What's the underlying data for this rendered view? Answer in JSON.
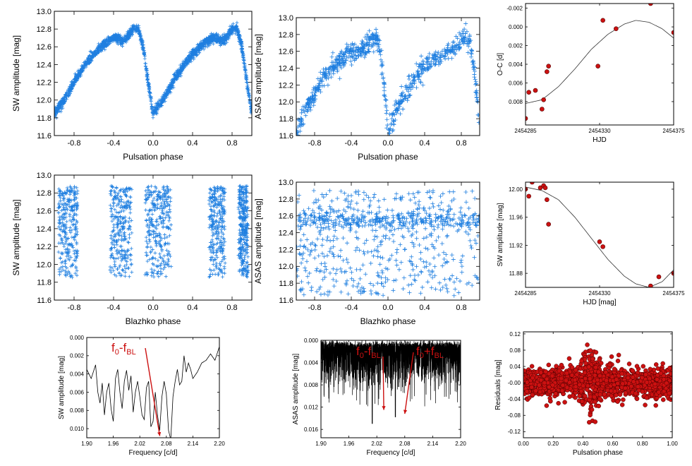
{
  "colors": {
    "blue": "#1f7fe0",
    "red": "#cc1111",
    "black": "#000000",
    "fit": "#333333"
  },
  "chart_data": [
    {
      "id": "p1",
      "type": "scatter",
      "marker": "plus",
      "color": "#1f7fe0",
      "density": "dense",
      "xlabel": "Pulsation phase",
      "ylabel": "SW amplitude [mag]",
      "xlim": [
        -1.0,
        1.0
      ],
      "ylim": [
        13.0,
        11.6
      ],
      "xticks": [
        "-0.8",
        "-0.4",
        "0.0",
        "0.4",
        "0.8"
      ],
      "xtickvals": [
        -0.8,
        -0.4,
        0.0,
        0.4,
        0.8
      ],
      "yticks": [
        "11.6",
        "11.8",
        "12.0",
        "12.2",
        "12.4",
        "12.6",
        "12.8",
        "13.0"
      ],
      "ytickvals": [
        11.6,
        11.8,
        12.0,
        12.2,
        12.4,
        12.6,
        12.8,
        13.0
      ],
      "curve": {
        "x": [
          0.0,
          0.05,
          0.1,
          0.2,
          0.3,
          0.4,
          0.5,
          0.6,
          0.65,
          0.7,
          0.75,
          0.8,
          0.85,
          0.9,
          0.95,
          1.0
        ],
        "y": [
          11.85,
          11.93,
          12.0,
          12.2,
          12.38,
          12.52,
          12.62,
          12.7,
          12.69,
          12.66,
          12.72,
          12.8,
          12.8,
          12.6,
          12.2,
          11.85
        ]
      },
      "spread": 0.05,
      "marker_size": 2.5,
      "count": 1800
    },
    {
      "id": "p2",
      "type": "scatter",
      "marker": "plus",
      "color": "#1f7fe0",
      "density": "sparse",
      "xlabel": "Pulsation phase",
      "ylabel": "ASAS amplitude [mag]",
      "xlim": [
        -1.0,
        1.0
      ],
      "ylim": [
        13.0,
        11.6
      ],
      "xticks": [
        "-0.8",
        "-0.4",
        "0.0",
        "0.4",
        "0.8"
      ],
      "xtickvals": [
        -0.8,
        -0.4,
        0.0,
        0.4,
        0.8
      ],
      "yticks": [
        "11.6",
        "11.8",
        "12.0",
        "12.2",
        "12.4",
        "12.6",
        "12.8",
        "13.0"
      ],
      "ytickvals": [
        11.6,
        11.8,
        12.0,
        12.2,
        12.4,
        12.6,
        12.8,
        13.0
      ],
      "curve": {
        "x": [
          0.0,
          0.05,
          0.1,
          0.2,
          0.3,
          0.4,
          0.5,
          0.6,
          0.65,
          0.7,
          0.75,
          0.8,
          0.85,
          0.9,
          0.95,
          1.0
        ],
        "y": [
          11.65,
          11.78,
          11.9,
          12.1,
          12.3,
          12.42,
          12.5,
          12.58,
          12.6,
          12.62,
          12.66,
          12.72,
          12.78,
          12.7,
          12.3,
          11.65
        ]
      },
      "spread": 0.12,
      "marker_size": 3,
      "count": 750
    },
    {
      "id": "p3",
      "type": "line",
      "color": "#000000",
      "xlabel": "HJD",
      "ylabel": "O-C [d]",
      "xlim": [
        2454285,
        2454375
      ],
      "ylim": [
        -0.0025,
        0.0105
      ],
      "xticks": [
        "2454285",
        "2454330",
        "2454375"
      ],
      "xtickvals": [
        2454285,
        2454330,
        2454375
      ],
      "yticks": [
        "-0.002",
        "0.000",
        "0.002",
        "0.004",
        "0.006",
        "0.008"
      ],
      "ytickvals": [
        -0.002,
        0.0,
        0.002,
        0.004,
        0.006,
        0.008
      ],
      "points": {
        "x": [
          2454285,
          2454287,
          2454291,
          2454295,
          2454296,
          2454298,
          2454299,
          2454329,
          2454332,
          2454340,
          2454361,
          2454375
        ],
        "y": [
          0.0098,
          0.007,
          0.0068,
          0.0088,
          0.0078,
          0.0048,
          0.0042,
          0.0042,
          -0.0007,
          0.0002,
          -0.0025,
          0.0006
        ]
      },
      "fit": {
        "x": [
          2454285,
          2454295,
          2454305,
          2454315,
          2454325,
          2454335,
          2454345,
          2454352,
          2454360,
          2454368,
          2454375
        ],
        "y": [
          0.0082,
          0.0078,
          0.0064,
          0.0045,
          0.0024,
          0.0008,
          -0.0003,
          -0.0007,
          -0.0005,
          0.0002,
          0.0012
        ]
      }
    },
    {
      "id": "p4",
      "type": "scatter",
      "marker": "plus",
      "color": "#1f7fe0",
      "density": "bands",
      "xlabel": "Blazhko phase",
      "ylabel": "SW amplitude [mag]",
      "xlim": [
        -1.0,
        1.0
      ],
      "ylim": [
        13.0,
        11.6
      ],
      "xticks": [
        "-0.8",
        "-0.4",
        "0.0",
        "0.4",
        "0.8"
      ],
      "xtickvals": [
        -0.8,
        -0.4,
        0.0,
        0.4,
        0.8
      ],
      "yticks": [
        "11.6",
        "11.8",
        "12.0",
        "12.2",
        "12.4",
        "12.6",
        "12.8",
        "13.0"
      ],
      "ytickvals": [
        11.6,
        11.8,
        12.0,
        12.2,
        12.4,
        12.6,
        12.8,
        13.0
      ],
      "bands": [
        [
          -0.96,
          -0.76
        ],
        [
          -0.43,
          -0.22
        ],
        [
          -0.08,
          0.18
        ],
        [
          0.57,
          0.73
        ],
        [
          0.87,
          0.96
        ]
      ],
      "yrange": [
        11.85,
        12.88
      ],
      "marker_size": 2.5,
      "count": 1400
    },
    {
      "id": "p5",
      "type": "scatter",
      "marker": "plus",
      "color": "#1f7fe0",
      "density": "uniform",
      "xlabel": "Blazhko phase",
      "ylabel": "ASAS amplitude [mag]",
      "xlim": [
        -1.0,
        1.0
      ],
      "ylim": [
        13.0,
        11.6
      ],
      "xticks": [
        "-0.8",
        "-0.4",
        "0.0",
        "0.4",
        "0.8"
      ],
      "xtickvals": [
        -0.8,
        -0.4,
        0.0,
        0.4,
        0.8
      ],
      "yticks": [
        "11.6",
        "11.8",
        "12.0",
        "12.2",
        "12.4",
        "12.6",
        "12.8",
        "13.0"
      ],
      "ytickvals": [
        11.6,
        11.8,
        12.0,
        12.2,
        12.4,
        12.6,
        12.8,
        13.0
      ],
      "yrange": [
        11.65,
        12.9
      ],
      "yconc": 12.55,
      "marker_size": 3,
      "count": 800
    },
    {
      "id": "p6",
      "type": "line",
      "color": "#000000",
      "xlabel": "HJD [mag]",
      "ylabel": "SW amplitude [mag]",
      "xlim": [
        2454285,
        2454375
      ],
      "ylim": [
        12.01,
        11.86
      ],
      "xticks": [
        "2454285",
        "2454330",
        "2454375"
      ],
      "xtickvals": [
        2454285,
        2454330,
        2454375
      ],
      "yticks": [
        "11.88",
        "11.92",
        "11.96",
        "12.00"
      ],
      "ytickvals": [
        11.88,
        11.92,
        11.96,
        12.0
      ],
      "points": {
        "x": [
          2454285,
          2454287,
          2454289,
          2454294,
          2454296,
          2454297,
          2454298,
          2454299,
          2454330,
          2454332,
          2454340,
          2454361,
          2454366,
          2454375
        ],
        "y": [
          12.0,
          11.99,
          12.01,
          12.002,
          12.005,
          12.002,
          11.985,
          11.95,
          11.925,
          11.918,
          11.857,
          11.862,
          11.875,
          11.88
        ]
      },
      "fit": {
        "x": [
          2454285,
          2454295,
          2454305,
          2454315,
          2454325,
          2454335,
          2454345,
          2454352,
          2454360,
          2454368,
          2454375
        ],
        "y": [
          12.003,
          11.998,
          11.985,
          11.96,
          11.93,
          11.9,
          11.876,
          11.865,
          11.86,
          11.868,
          11.885
        ]
      }
    },
    {
      "id": "p7",
      "type": "line",
      "color": "#000000",
      "xlabel": "Frequency [c/d]",
      "ylabel": "SW amplitude [mag]",
      "xlim": [
        1.9,
        2.2
      ],
      "ylim": [
        0,
        0.011
      ],
      "xticks": [
        "1.90",
        "1.96",
        "2.02",
        "2.08",
        "2.14",
        "2.20"
      ],
      "xtickvals": [
        1.9,
        1.96,
        2.02,
        2.08,
        2.14,
        2.2
      ],
      "yticks": [
        "0.000",
        "0.002",
        "0.004",
        "0.006",
        "0.008",
        "0.010"
      ],
      "ytickvals": [
        0.0,
        0.002,
        0.004,
        0.006,
        0.008,
        0.01
      ],
      "x": [
        1.9,
        1.91,
        1.92,
        1.925,
        1.93,
        1.935,
        1.94,
        1.945,
        1.95,
        1.955,
        1.96,
        1.965,
        1.97,
        1.975,
        1.98,
        1.985,
        1.99,
        1.995,
        2.0,
        2.005,
        2.01,
        2.015,
        2.02,
        2.025,
        2.03,
        2.035,
        2.04,
        2.045,
        2.05,
        2.055,
        2.06,
        2.065,
        2.07,
        2.075,
        2.08,
        2.085,
        2.09,
        2.095,
        2.1,
        2.105,
        2.11,
        2.115,
        2.12,
        2.125,
        2.13,
        2.135,
        2.14,
        2.15,
        2.16,
        2.17,
        2.18,
        2.19,
        2.2
      ],
      "y": [
        0.0035,
        0.0045,
        0.003,
        0.006,
        0.0072,
        0.005,
        0.0085,
        0.006,
        0.005,
        0.0078,
        0.0092,
        0.0045,
        0.0035,
        0.006,
        0.0078,
        0.0048,
        0.0036,
        0.0058,
        0.0042,
        0.0082,
        0.006,
        0.0048,
        0.0065,
        0.0085,
        0.009,
        0.0055,
        0.0048,
        0.0098,
        0.0092,
        0.006,
        0.0085,
        0.0102,
        0.0065,
        0.0048,
        0.0062,
        0.0102,
        0.0112,
        0.0065,
        0.0048,
        0.0035,
        0.0052,
        0.0048,
        0.002,
        0.0038,
        0.0028,
        0.0035,
        0.0045,
        0.0038,
        0.0028,
        0.0025,
        0.0018,
        0.0025,
        0.001
      ],
      "annotations": [
        {
          "label_main": "f",
          "sub": "0",
          "op": "-",
          "label2": "f",
          "sub2": "BL",
          "arrow_to": [
            2.07,
            0.0105
          ]
        }
      ]
    },
    {
      "id": "p8",
      "type": "line",
      "color": "#000000",
      "density": "noise",
      "xlabel": "Frequency [c/d]",
      "ylabel": "ASAS amplitude [mag]",
      "xlim": [
        1.9,
        2.2
      ],
      "ylim": [
        0,
        0.0175
      ],
      "xticks": [
        "1.90",
        "1.96",
        "2.02",
        "2.08",
        "2.14",
        "2.20"
      ],
      "xtickvals": [
        1.9,
        1.96,
        2.02,
        2.08,
        2.14,
        2.2
      ],
      "yticks": [
        "0.000",
        "0.004",
        "0.008",
        "0.012",
        "0.016"
      ],
      "ytickvals": [
        0.0,
        0.004,
        0.008,
        0.012,
        0.016
      ],
      "peaks": [
        {
          "x": 2.01,
          "y": 0.015
        },
        {
          "x": 2.06,
          "y": 0.0138
        }
      ],
      "annotations": [
        {
          "label_main": "f",
          "sub": "0",
          "op": "-",
          "label2": "f",
          "sub2": "BL",
          "arrow_to": [
            2.035,
            0.0125
          ]
        },
        {
          "label_main": "f",
          "sub": "0",
          "op": "+",
          "label2": "f",
          "sub2": "BL",
          "arrow_to": [
            2.08,
            0.0132
          ]
        }
      ]
    },
    {
      "id": "p9",
      "type": "scatter",
      "marker": "circle",
      "color": "#cc1111",
      "xlabel": "Pulsation phase",
      "ylabel": "Residuals [mag]",
      "xlim": [
        0.0,
        1.0
      ],
      "ylim": [
        0.125,
        -0.135
      ],
      "xticks": [
        "0.00",
        "0.20",
        "0.40",
        "0.60",
        "0.80",
        "1.00"
      ],
      "xtickvals": [
        0.0,
        0.2,
        0.4,
        0.6,
        0.8,
        1.0
      ],
      "yticks": [
        "-0.12",
        "-0.08",
        "-0.04",
        "-0.00",
        "0.04",
        "0.08",
        "0.12"
      ],
      "ytickvals": [
        -0.12,
        -0.08,
        -0.04,
        0.0,
        0.04,
        0.08,
        0.12
      ],
      "spread": 0.03,
      "count": 1500
    }
  ]
}
